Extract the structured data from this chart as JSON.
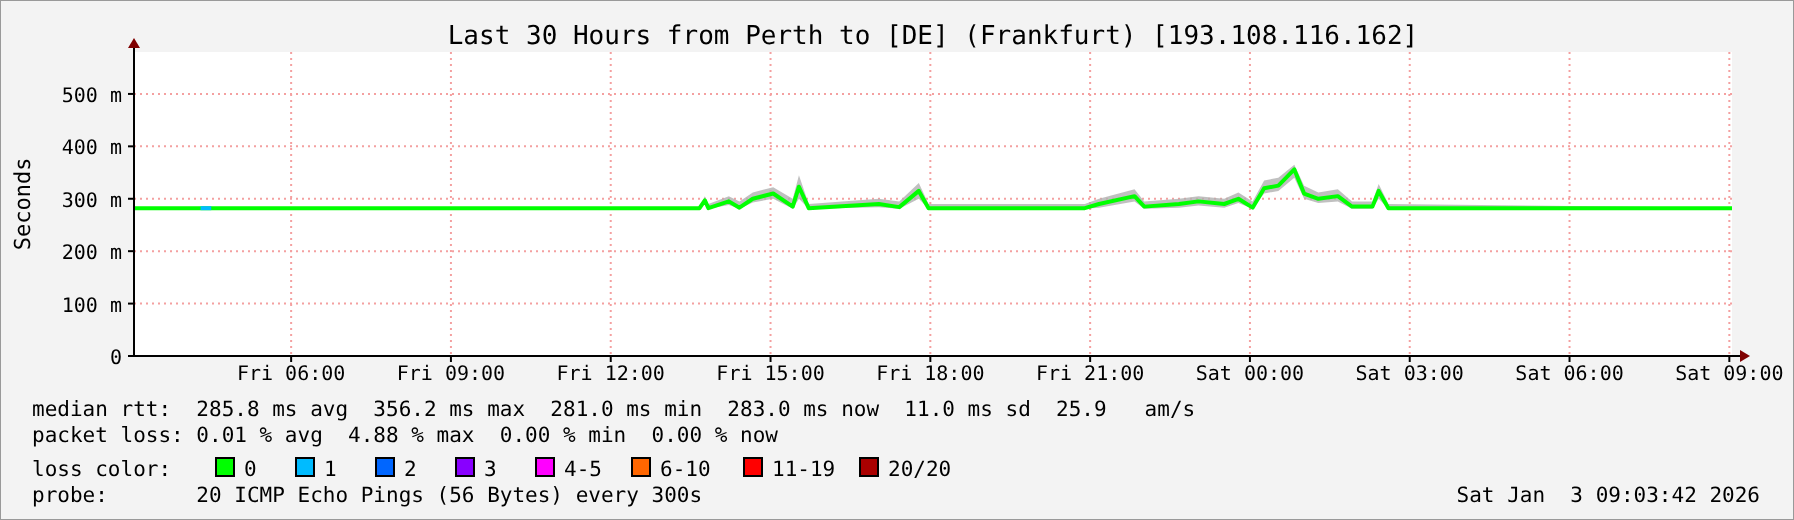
{
  "chart_data": {
    "type": "line",
    "title": "Last 30 Hours from Perth to [DE] (Frankfurt) [193.108.116.162]",
    "ylabel": "Seconds",
    "xlim": [
      "2026-01-02T03:03",
      "2026-01-03T09:03"
    ],
    "xticks": [
      {
        "value": "2026-01-02T06:00",
        "label": "Fri 06:00"
      },
      {
        "value": "2026-01-02T09:00",
        "label": "Fri 09:00"
      },
      {
        "value": "2026-01-02T12:00",
        "label": "Fri 12:00"
      },
      {
        "value": "2026-01-02T15:00",
        "label": "Fri 15:00"
      },
      {
        "value": "2026-01-02T18:00",
        "label": "Fri 18:00"
      },
      {
        "value": "2026-01-02T21:00",
        "label": "Fri 21:00"
      },
      {
        "value": "2026-01-03T00:00",
        "label": "Sat 00:00"
      },
      {
        "value": "2026-01-03T03:00",
        "label": "Sat 03:00"
      },
      {
        "value": "2026-01-03T06:00",
        "label": "Sat 06:00"
      },
      {
        "value": "2026-01-03T09:00",
        "label": "Sat 09:00"
      }
    ],
    "ylim": [
      0,
      580
    ],
    "yticks": [
      0,
      {
        "value": 100,
        "label": "100 m"
      },
      {
        "value": 200,
        "label": "200 m"
      },
      {
        "value": 300,
        "label": "300 m"
      },
      {
        "value": 400,
        "label": "400 m"
      },
      {
        "value": 500,
        "label": "500 m"
      }
    ],
    "grid": true,
    "legend": "bottom",
    "legend_title": "loss color:",
    "line_style": "solid",
    "x": [
      "2026-01-02T03:03",
      "2026-01-02T13:40",
      "2026-01-02T13:46",
      "2026-01-02T13:50",
      "2026-01-02T14:13",
      "2026-01-02T14:25",
      "2026-01-02T14:40",
      "2026-01-02T15:03",
      "2026-01-02T15:25",
      "2026-01-02T15:32",
      "2026-01-02T15:43",
      "2026-01-02T17:02",
      "2026-01-02T17:25",
      "2026-01-02T17:47",
      "2026-01-02T17:58",
      "2026-01-02T20:54",
      "2026-01-02T21:10",
      "2026-01-02T21:50",
      "2026-01-02T22:01",
      "2026-01-02T22:40",
      "2026-01-02T23:02",
      "2026-01-02T23:31",
      "2026-01-02T23:47",
      "2026-01-03T00:03",
      "2026-01-03T00:16",
      "2026-01-03T00:32",
      "2026-01-03T00:50",
      "2026-01-03T01:01",
      "2026-01-03T01:17",
      "2026-01-03T01:39",
      "2026-01-03T01:55",
      "2026-01-03T02:18",
      "2026-01-03T02:25",
      "2026-01-03T02:36",
      "2026-01-03T09:03"
    ],
    "series": [
      {
        "name": "0",
        "color": "#00ff00",
        "values": [
          282,
          282,
          297,
          282,
          295,
          283,
          300,
          310,
          285,
          323,
          282,
          290,
          284,
          315,
          282,
          282,
          290,
          305,
          285,
          290,
          295,
          290,
          300,
          283,
          320,
          325,
          356,
          310,
          300,
          305,
          285,
          285,
          315,
          282,
          282
        ],
        "lower": [
          281,
          281,
          290,
          281,
          288,
          281,
          293,
          300,
          281,
          300,
          281,
          284,
          281,
          300,
          281,
          281,
          283,
          295,
          281,
          283,
          287,
          283,
          292,
          281,
          310,
          315,
          340,
          300,
          292,
          295,
          281,
          281,
          300,
          281,
          281
        ],
        "upper": [
          283,
          283,
          305,
          290,
          305,
          295,
          312,
          322,
          300,
          345,
          290,
          300,
          295,
          330,
          290,
          290,
          300,
          318,
          295,
          300,
          305,
          300,
          312,
          295,
          335,
          340,
          365,
          325,
          312,
          318,
          295,
          295,
          328,
          290,
          283
        ]
      },
      {
        "name": "1",
        "color": "#00bbff",
        "x": [
          "2026-01-02T04:18",
          "2026-01-02T04:30"
        ],
        "values": [
          282,
          282
        ]
      },
      {
        "name": "2",
        "color": "#0066ff",
        "values": [
          null,
          null,
          null,
          null,
          null,
          null,
          null,
          null,
          null,
          null,
          null,
          null,
          null,
          null,
          null,
          null,
          null,
          null,
          null,
          null,
          null,
          null,
          null,
          null,
          null,
          null,
          null,
          null,
          null,
          null,
          null,
          null,
          null,
          null,
          null
        ]
      },
      {
        "name": "3",
        "color": "#8800ff",
        "values": [
          null,
          null,
          null,
          null,
          null,
          null,
          null,
          null,
          null,
          null,
          null,
          null,
          null,
          null,
          null,
          null,
          null,
          null,
          null,
          null,
          null,
          null,
          null,
          null,
          null,
          null,
          null,
          null,
          null,
          null,
          null,
          null,
          null,
          null,
          null
        ]
      },
      {
        "name": "4-5",
        "color": "#ff00ff",
        "values": [
          null,
          null,
          null,
          null,
          null,
          null,
          null,
          null,
          null,
          null,
          null,
          null,
          null,
          null,
          null,
          null,
          null,
          null,
          null,
          null,
          null,
          null,
          null,
          null,
          null,
          null,
          null,
          null,
          null,
          null,
          null,
          null,
          null,
          null,
          null
        ]
      },
      {
        "name": "6-10",
        "color": "#ff6600",
        "values": [
          null,
          null,
          null,
          null,
          null,
          null,
          null,
          null,
          null,
          null,
          null,
          null,
          null,
          null,
          null,
          null,
          null,
          null,
          null,
          null,
          null,
          null,
          null,
          null,
          null,
          null,
          null,
          null,
          null,
          null,
          null,
          null,
          null,
          null,
          null
        ]
      },
      {
        "name": "11-19",
        "color": "#ff0000",
        "values": [
          null,
          null,
          null,
          null,
          null,
          null,
          null,
          null,
          null,
          null,
          null,
          null,
          null,
          null,
          null,
          null,
          null,
          null,
          null,
          null,
          null,
          null,
          null,
          null,
          null,
          null,
          null,
          null,
          null,
          null,
          null,
          null,
          null,
          null,
          null
        ]
      },
      {
        "name": "20/20",
        "color": "#aa0000",
        "values": [
          null,
          null,
          null,
          null,
          null,
          null,
          null,
          null,
          null,
          null,
          null,
          null,
          null,
          null,
          null,
          null,
          null,
          null,
          null,
          null,
          null,
          null,
          null,
          null,
          null,
          null,
          null,
          null,
          null,
          null,
          null,
          null,
          null,
          null,
          null
        ]
      }
    ],
    "annotations": [
      "median rtt:  285.8 ms avg  356.2 ms max  281.0 ms min  283.0 ms now  11.0 ms sd  25.9   am/s",
      "packet loss: 0.01 % avg  4.88 % max  0.00 % min  0.00 % now",
      "probe:       20 ICMP Echo Pings (56 Bytes) every 300s",
      "Sat Jan  3 09:03:42 2026"
    ]
  }
}
